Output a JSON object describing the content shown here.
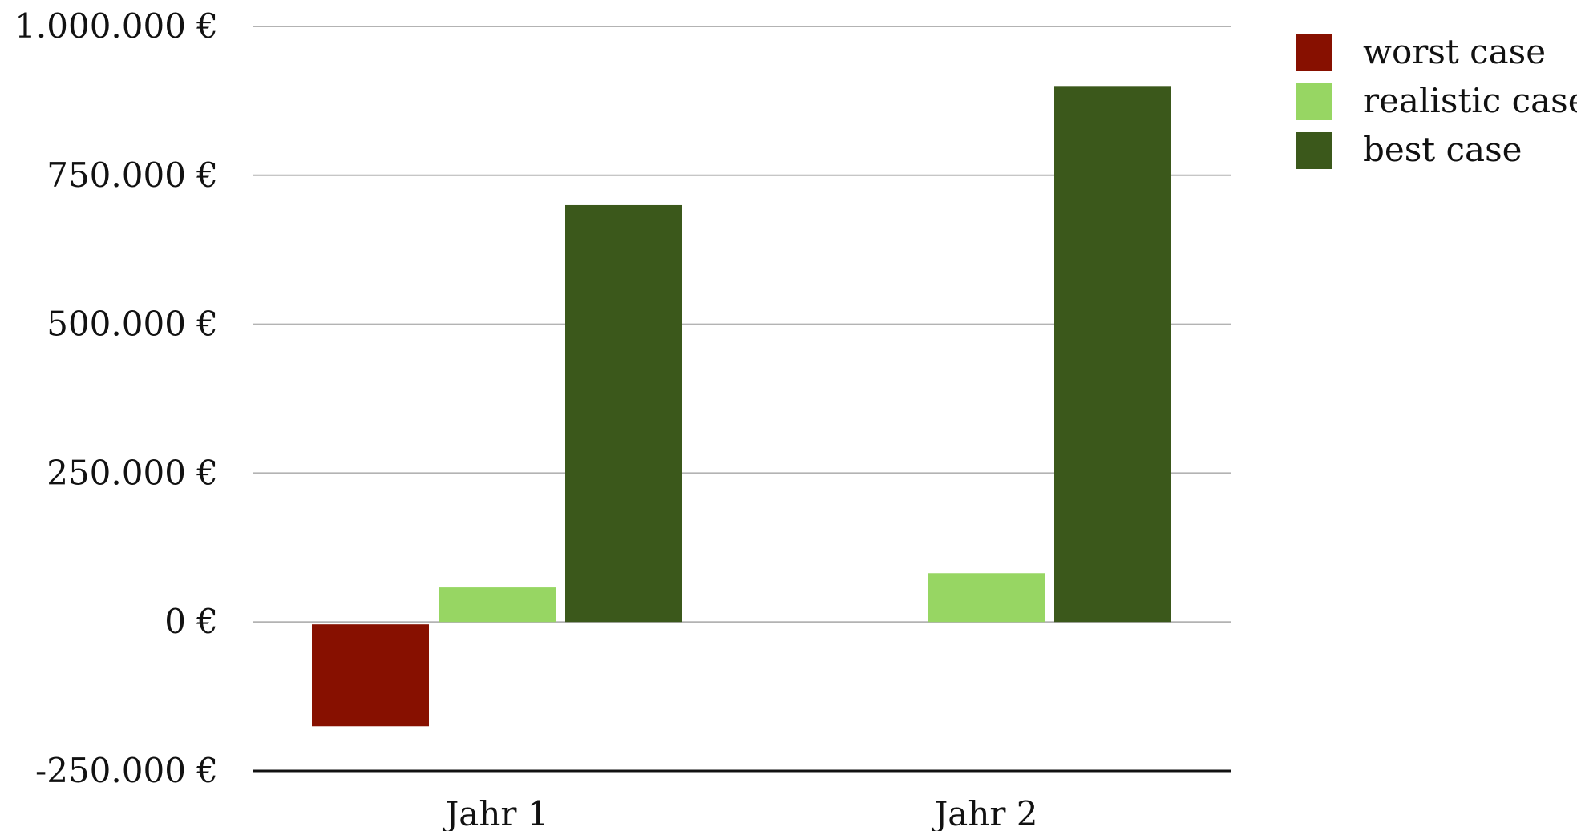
{
  "chart_data": {
    "type": "bar",
    "categories": [
      "Jahr 1",
      "Jahr 2"
    ],
    "series": [
      {
        "name": "worst case",
        "values": [
          -175000,
          null
        ],
        "color": "#871000"
      },
      {
        "name": "realistic case",
        "values": [
          58000,
          82000
        ],
        "color": "#97d663"
      },
      {
        "name": "best case",
        "values": [
          700000,
          900000
        ],
        "color": "#3b581b"
      }
    ],
    "y_ticks": [
      {
        "value": 1000000,
        "label": "1.000.000 €"
      },
      {
        "value": 750000,
        "label": "750.000 €"
      },
      {
        "value": 500000,
        "label": "500.000 €"
      },
      {
        "value": 250000,
        "label": "250.000 €"
      },
      {
        "value": 0,
        "label": "0 €"
      },
      {
        "value": -250000,
        "label": "-250.000 €"
      }
    ],
    "ylim": [
      -250000,
      1000000
    ],
    "title": "",
    "xlabel": "",
    "ylabel": "",
    "grid": true,
    "legend_position": "top-right",
    "gridline_color": "#b3b3b3",
    "axis_color": "#111111"
  }
}
